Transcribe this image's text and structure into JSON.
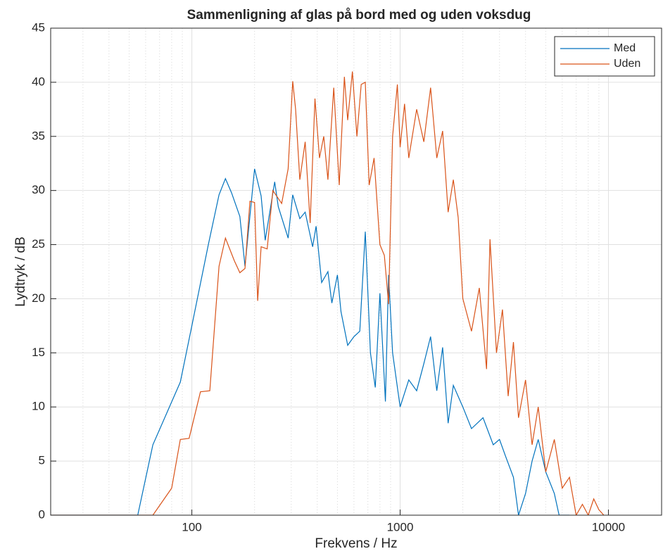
{
  "chart_data": {
    "type": "line",
    "title": "Sammenligning af glas på bord med og uden voksdug",
    "xlabel": "Frekvens / Hz",
    "ylabel": "Lydtryk / dB",
    "xscale": "log",
    "xlim": [
      21,
      18000
    ],
    "xticks": [
      100,
      1000,
      10000
    ],
    "xminor_ticks": [
      30,
      40,
      50,
      60,
      70,
      80,
      90,
      200,
      300,
      400,
      500,
      600,
      700,
      800,
      900,
      2000,
      3000,
      4000,
      5000,
      6000,
      7000,
      8000,
      9000
    ],
    "ylim": [
      0,
      45
    ],
    "yticks": [
      0,
      5,
      10,
      15,
      20,
      25,
      30,
      35,
      40,
      45
    ],
    "grid": true,
    "legend": "upper right",
    "series": [
      {
        "name": "Med",
        "color": "#0072BD",
        "x": [
          21,
          55,
          65,
          88,
          100,
          120,
          135,
          145,
          155,
          170,
          180,
          200,
          215,
          225,
          250,
          260,
          290,
          305,
          330,
          350,
          380,
          395,
          420,
          450,
          470,
          500,
          520,
          560,
          600,
          640,
          680,
          720,
          760,
          800,
          850,
          880,
          920,
          1000,
          1100,
          1200,
          1300,
          1400,
          1500,
          1600,
          1700,
          1800,
          2000,
          2200,
          2500,
          2800,
          3000,
          3200,
          3500,
          3700,
          4000,
          4300,
          4600,
          5000,
          5500,
          5800,
          6500
        ],
        "values": [
          0,
          0,
          6.5,
          12.3,
          17.5,
          25,
          29.6,
          31.1,
          29.8,
          27.6,
          23,
          32,
          29.5,
          25.4,
          30.8,
          28.5,
          25.6,
          29.6,
          27.4,
          28,
          24.8,
          26.7,
          21.5,
          22.5,
          19.6,
          22.2,
          18.8,
          15.7,
          16.5,
          17,
          26.2,
          15,
          11.8,
          20.5,
          10.5,
          22.2,
          15,
          10,
          12.5,
          11.5,
          14,
          16.5,
          11.5,
          15.5,
          8.5,
          12,
          10,
          8,
          9,
          6.5,
          7,
          5.5,
          3.5,
          0,
          2,
          5,
          7,
          4,
          2,
          0,
          0
        ]
      },
      {
        "name": "Uden",
        "color": "#D95319",
        "x": [
          21,
          65,
          80,
          88,
          97,
          110,
          122,
          135,
          145,
          160,
          170,
          180,
          190,
          200,
          207,
          215,
          230,
          245,
          270,
          290,
          305,
          315,
          330,
          350,
          370,
          390,
          410,
          430,
          450,
          480,
          510,
          540,
          560,
          590,
          620,
          650,
          680,
          710,
          750,
          800,
          840,
          880,
          920,
          970,
          1000,
          1050,
          1100,
          1200,
          1300,
          1400,
          1500,
          1600,
          1700,
          1800,
          1900,
          2000,
          2200,
          2400,
          2600,
          2700,
          2900,
          3100,
          3300,
          3500,
          3700,
          4000,
          4300,
          4600,
          5000,
          5500,
          6000,
          6500,
          7000,
          7500,
          8000,
          8500,
          9000,
          9500
        ],
        "values": [
          0,
          0,
          2.5,
          7,
          7.1,
          11.4,
          11.5,
          23,
          25.6,
          23.5,
          22.4,
          22.8,
          29,
          28.9,
          19.8,
          24.8,
          24.6,
          30,
          28.8,
          32,
          40.1,
          37.5,
          31,
          34.5,
          27,
          38.5,
          33,
          35,
          31,
          39.5,
          30.5,
          40.5,
          36.5,
          41,
          35,
          39.8,
          40,
          30.5,
          33,
          25,
          24,
          19.5,
          35,
          39.8,
          34,
          38,
          33,
          37.5,
          34.5,
          39.5,
          33,
          35.5,
          28,
          31,
          27.5,
          20,
          17,
          21,
          13.5,
          25.5,
          15,
          19,
          11,
          16,
          9,
          12.5,
          6.5,
          10,
          4,
          7,
          2.5,
          3.5,
          0,
          1,
          0,
          1.5,
          0.5,
          0
        ]
      }
    ]
  }
}
